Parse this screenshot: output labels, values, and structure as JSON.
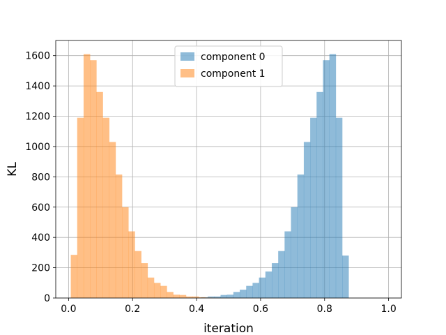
{
  "chart_data": {
    "type": "histogram",
    "xlabel": "iteration",
    "ylabel": "KL",
    "xlim": [
      -0.04,
      1.04
    ],
    "ylim": [
      0,
      1700
    ],
    "xticks": [
      0.0,
      0.2,
      0.4,
      0.6,
      0.8,
      1.0
    ],
    "xtick_labels": [
      "0.0",
      "0.2",
      "0.4",
      "0.6",
      "0.8",
      "1.0"
    ],
    "yticks": [
      0,
      200,
      400,
      600,
      800,
      1000,
      1200,
      1400,
      1600
    ],
    "ytick_labels": [
      "0",
      "200",
      "400",
      "600",
      "800",
      "1000",
      "1200",
      "1400",
      "1600"
    ],
    "grid": true,
    "legend_position": "top-center",
    "bin_width": 0.02,
    "series": [
      {
        "name": "component 0",
        "color": "#1f77b4",
        "alpha": 0.5,
        "bins_start": 0.375,
        "values": [
          2,
          3,
          5,
          10,
          10,
          20,
          22,
          40,
          55,
          80,
          100,
          135,
          175,
          230,
          310,
          440,
          600,
          815,
          1030,
          1190,
          1360,
          1570,
          1610,
          1190,
          280
        ]
      },
      {
        "name": "component 1",
        "color": "#ff7f0e",
        "alpha": 0.5,
        "bins_start": 0.007,
        "values": [
          285,
          1190,
          1610,
          1570,
          1360,
          1190,
          1030,
          815,
          600,
          440,
          310,
          230,
          135,
          100,
          80,
          40,
          22,
          20,
          10,
          10,
          5,
          3,
          2
        ]
      }
    ]
  }
}
